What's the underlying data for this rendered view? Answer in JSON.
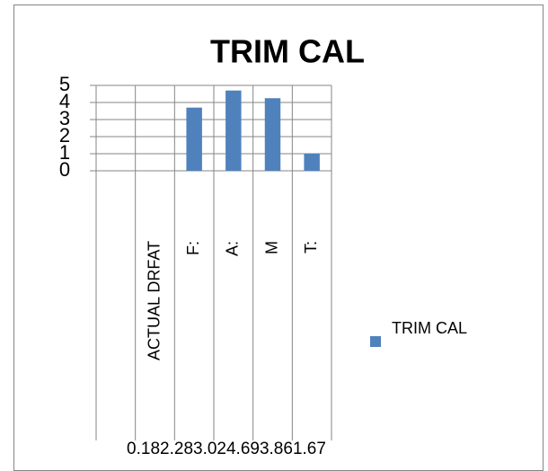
{
  "chart_data": {
    "type": "bar",
    "title": "TRIM CAL",
    "categories": [
      null,
      "ACTUAL DRFAT",
      "F:",
      "A:",
      "M",
      "T:"
    ],
    "series": [
      {
        "name": "TRIM CAL",
        "color": "#4f81bd",
        "values": [
          null,
          null,
          3.7,
          4.7,
          4.25,
          1.0
        ]
      }
    ],
    "x_outer_label": "0.182.283.024.693.861.67",
    "ylim": [
      0,
      5
    ],
    "yticks": [
      0,
      1,
      2,
      3,
      4,
      5
    ],
    "grid": true,
    "legend": "right"
  }
}
